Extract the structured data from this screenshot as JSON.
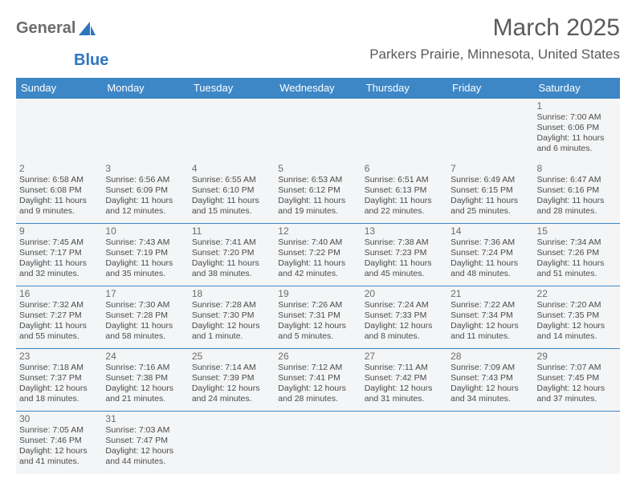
{
  "logo": {
    "part1": "General",
    "part2": "Blue",
    "sail_color": "#2f76bf",
    "text1_color": "#6b6b6b"
  },
  "title": "March 2025",
  "location": "Parkers Prairie, Minnesota, United States",
  "colors": {
    "header_bg": "#3e87c6",
    "header_text": "#ffffff",
    "cell_bg": "#f4f5f6",
    "border": "#3e87c6",
    "day_text": "#4b4b4b",
    "daynum": "#6b6b6b",
    "title": "#5a5a5a"
  },
  "day_headers": [
    "Sunday",
    "Monday",
    "Tuesday",
    "Wednesday",
    "Thursday",
    "Friday",
    "Saturday"
  ],
  "weeks": [
    [
      null,
      null,
      null,
      null,
      null,
      null,
      {
        "n": "1",
        "sunrise": "Sunrise: 7:00 AM",
        "sunset": "Sunset: 6:06 PM",
        "day1": "Daylight: 11 hours",
        "day2": "and 6 minutes."
      }
    ],
    [
      {
        "n": "2",
        "sunrise": "Sunrise: 6:58 AM",
        "sunset": "Sunset: 6:08 PM",
        "day1": "Daylight: 11 hours",
        "day2": "and 9 minutes."
      },
      {
        "n": "3",
        "sunrise": "Sunrise: 6:56 AM",
        "sunset": "Sunset: 6:09 PM",
        "day1": "Daylight: 11 hours",
        "day2": "and 12 minutes."
      },
      {
        "n": "4",
        "sunrise": "Sunrise: 6:55 AM",
        "sunset": "Sunset: 6:10 PM",
        "day1": "Daylight: 11 hours",
        "day2": "and 15 minutes."
      },
      {
        "n": "5",
        "sunrise": "Sunrise: 6:53 AM",
        "sunset": "Sunset: 6:12 PM",
        "day1": "Daylight: 11 hours",
        "day2": "and 19 minutes."
      },
      {
        "n": "6",
        "sunrise": "Sunrise: 6:51 AM",
        "sunset": "Sunset: 6:13 PM",
        "day1": "Daylight: 11 hours",
        "day2": "and 22 minutes."
      },
      {
        "n": "7",
        "sunrise": "Sunrise: 6:49 AM",
        "sunset": "Sunset: 6:15 PM",
        "day1": "Daylight: 11 hours",
        "day2": "and 25 minutes."
      },
      {
        "n": "8",
        "sunrise": "Sunrise: 6:47 AM",
        "sunset": "Sunset: 6:16 PM",
        "day1": "Daylight: 11 hours",
        "day2": "and 28 minutes."
      }
    ],
    [
      {
        "n": "9",
        "sunrise": "Sunrise: 7:45 AM",
        "sunset": "Sunset: 7:17 PM",
        "day1": "Daylight: 11 hours",
        "day2": "and 32 minutes."
      },
      {
        "n": "10",
        "sunrise": "Sunrise: 7:43 AM",
        "sunset": "Sunset: 7:19 PM",
        "day1": "Daylight: 11 hours",
        "day2": "and 35 minutes."
      },
      {
        "n": "11",
        "sunrise": "Sunrise: 7:41 AM",
        "sunset": "Sunset: 7:20 PM",
        "day1": "Daylight: 11 hours",
        "day2": "and 38 minutes."
      },
      {
        "n": "12",
        "sunrise": "Sunrise: 7:40 AM",
        "sunset": "Sunset: 7:22 PM",
        "day1": "Daylight: 11 hours",
        "day2": "and 42 minutes."
      },
      {
        "n": "13",
        "sunrise": "Sunrise: 7:38 AM",
        "sunset": "Sunset: 7:23 PM",
        "day1": "Daylight: 11 hours",
        "day2": "and 45 minutes."
      },
      {
        "n": "14",
        "sunrise": "Sunrise: 7:36 AM",
        "sunset": "Sunset: 7:24 PM",
        "day1": "Daylight: 11 hours",
        "day2": "and 48 minutes."
      },
      {
        "n": "15",
        "sunrise": "Sunrise: 7:34 AM",
        "sunset": "Sunset: 7:26 PM",
        "day1": "Daylight: 11 hours",
        "day2": "and 51 minutes."
      }
    ],
    [
      {
        "n": "16",
        "sunrise": "Sunrise: 7:32 AM",
        "sunset": "Sunset: 7:27 PM",
        "day1": "Daylight: 11 hours",
        "day2": "and 55 minutes."
      },
      {
        "n": "17",
        "sunrise": "Sunrise: 7:30 AM",
        "sunset": "Sunset: 7:28 PM",
        "day1": "Daylight: 11 hours",
        "day2": "and 58 minutes."
      },
      {
        "n": "18",
        "sunrise": "Sunrise: 7:28 AM",
        "sunset": "Sunset: 7:30 PM",
        "day1": "Daylight: 12 hours",
        "day2": "and 1 minute."
      },
      {
        "n": "19",
        "sunrise": "Sunrise: 7:26 AM",
        "sunset": "Sunset: 7:31 PM",
        "day1": "Daylight: 12 hours",
        "day2": "and 5 minutes."
      },
      {
        "n": "20",
        "sunrise": "Sunrise: 7:24 AM",
        "sunset": "Sunset: 7:33 PM",
        "day1": "Daylight: 12 hours",
        "day2": "and 8 minutes."
      },
      {
        "n": "21",
        "sunrise": "Sunrise: 7:22 AM",
        "sunset": "Sunset: 7:34 PM",
        "day1": "Daylight: 12 hours",
        "day2": "and 11 minutes."
      },
      {
        "n": "22",
        "sunrise": "Sunrise: 7:20 AM",
        "sunset": "Sunset: 7:35 PM",
        "day1": "Daylight: 12 hours",
        "day2": "and 14 minutes."
      }
    ],
    [
      {
        "n": "23",
        "sunrise": "Sunrise: 7:18 AM",
        "sunset": "Sunset: 7:37 PM",
        "day1": "Daylight: 12 hours",
        "day2": "and 18 minutes."
      },
      {
        "n": "24",
        "sunrise": "Sunrise: 7:16 AM",
        "sunset": "Sunset: 7:38 PM",
        "day1": "Daylight: 12 hours",
        "day2": "and 21 minutes."
      },
      {
        "n": "25",
        "sunrise": "Sunrise: 7:14 AM",
        "sunset": "Sunset: 7:39 PM",
        "day1": "Daylight: 12 hours",
        "day2": "and 24 minutes."
      },
      {
        "n": "26",
        "sunrise": "Sunrise: 7:12 AM",
        "sunset": "Sunset: 7:41 PM",
        "day1": "Daylight: 12 hours",
        "day2": "and 28 minutes."
      },
      {
        "n": "27",
        "sunrise": "Sunrise: 7:11 AM",
        "sunset": "Sunset: 7:42 PM",
        "day1": "Daylight: 12 hours",
        "day2": "and 31 minutes."
      },
      {
        "n": "28",
        "sunrise": "Sunrise: 7:09 AM",
        "sunset": "Sunset: 7:43 PM",
        "day1": "Daylight: 12 hours",
        "day2": "and 34 minutes."
      },
      {
        "n": "29",
        "sunrise": "Sunrise: 7:07 AM",
        "sunset": "Sunset: 7:45 PM",
        "day1": "Daylight: 12 hours",
        "day2": "and 37 minutes."
      }
    ],
    [
      {
        "n": "30",
        "sunrise": "Sunrise: 7:05 AM",
        "sunset": "Sunset: 7:46 PM",
        "day1": "Daylight: 12 hours",
        "day2": "and 41 minutes."
      },
      {
        "n": "31",
        "sunrise": "Sunrise: 7:03 AM",
        "sunset": "Sunset: 7:47 PM",
        "day1": "Daylight: 12 hours",
        "day2": "and 44 minutes."
      },
      null,
      null,
      null,
      null,
      null
    ]
  ]
}
